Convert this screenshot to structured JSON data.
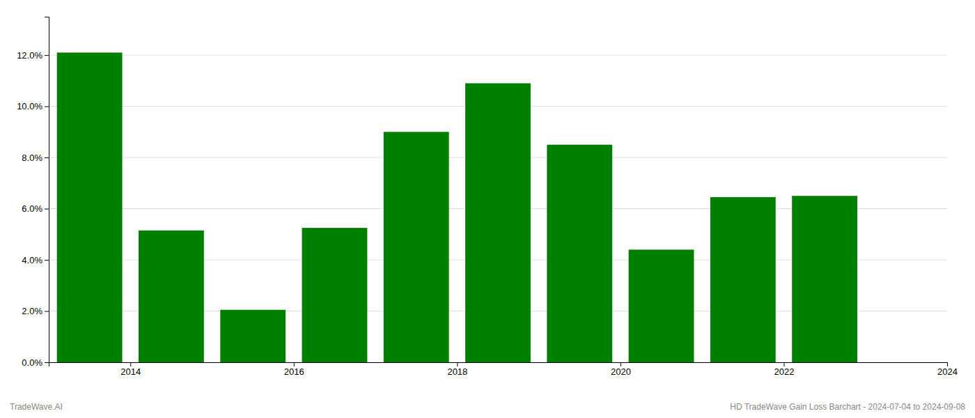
{
  "chart_data": {
    "type": "bar",
    "title": "HD TradeWave Gain Loss Barchart - 2024-07-04 to 2024-09-08",
    "annotations": [
      "TradeWave.AI"
    ],
    "x": [
      2013.5,
      2014.5,
      2015.5,
      2016.5,
      2017.5,
      2018.5,
      2019.5,
      2020.5,
      2021.5,
      2022.5
    ],
    "values": [
      0.121,
      0.0515,
      0.0205,
      0.0525,
      0.09,
      0.109,
      0.085,
      0.044,
      0.0645,
      0.065
    ],
    "color": "#008000",
    "xlim": [
      2013.0,
      2024.0
    ],
    "xticks": [
      2014,
      2016,
      2018,
      2020,
      2022,
      2024
    ],
    "ylim": [
      0,
      0.135
    ],
    "yticks": [
      {
        "value": 0,
        "label": "0.0%"
      },
      {
        "value": 0.02,
        "label": "2.0%"
      },
      {
        "value": 0.04,
        "label": "4.0%"
      },
      {
        "value": 0.06,
        "label": "6.0%"
      },
      {
        "value": 0.08,
        "label": "8.0%"
      },
      {
        "value": 0.1,
        "label": "10.0%"
      },
      {
        "value": 0.12,
        "label": "12.0%"
      }
    ],
    "grid": true
  }
}
